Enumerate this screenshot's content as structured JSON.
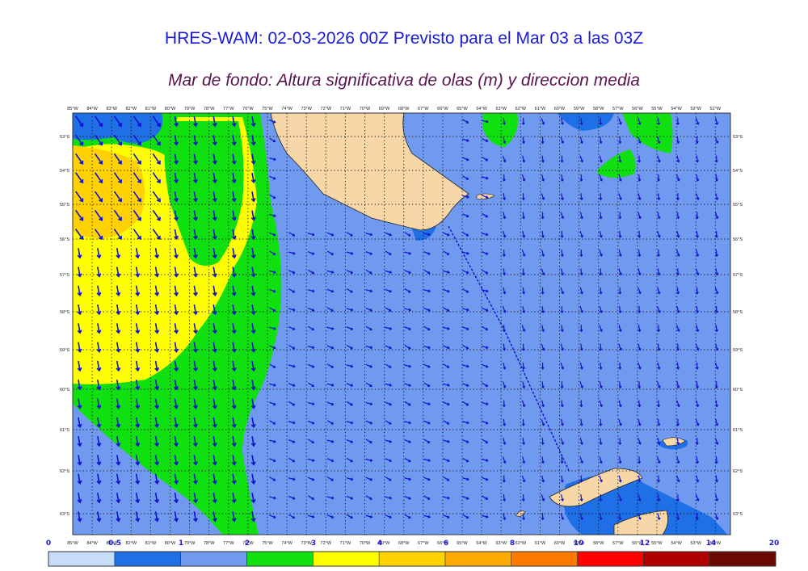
{
  "title": "HRES-WAM: 02-03-2026 00Z Previsto para el Mar 03 a las 03Z",
  "subtitle": "Mar de fondo: Altura significativa de olas (m) y direccion media",
  "map": {
    "lon_labels": [
      "85°W",
      "84°W",
      "83°W",
      "82°W",
      "81°W",
      "80°W",
      "79°W",
      "78°W",
      "77°W",
      "76°W",
      "75°W",
      "74°W",
      "73°W",
      "72°W",
      "71°W",
      "70°W",
      "69°W",
      "68°W",
      "67°W",
      "66°W",
      "65°W",
      "64°W",
      "63°W",
      "62°W",
      "61°W",
      "60°W",
      "59°W",
      "58°W",
      "57°W",
      "56°W",
      "55°W",
      "54°W",
      "53°W",
      "52°W"
    ],
    "lat_labels": [
      "53°S",
      "54°S",
      "55°S",
      "56°S",
      "57°S",
      "58°S",
      "59°S",
      "60°S",
      "61°S",
      "62°S",
      "63°S"
    ]
  },
  "colorbar": {
    "labels": [
      "0",
      "0.5",
      "1",
      "2",
      "3",
      "4",
      "6",
      "8",
      "10",
      "12",
      "14",
      "20"
    ],
    "colors": [
      "#c6dcf7",
      "#1f6fe6",
      "#6f9af0",
      "#10e010",
      "#ffff00",
      "#ffd200",
      "#ffaa00",
      "#ff7a00",
      "#ff0000",
      "#b00000",
      "#6a0a00",
      "#3a3a3a"
    ]
  },
  "colors": {
    "title": "#1a1ad6",
    "subtitle": "#5a1450",
    "land": "#f7d6a8",
    "arrow": "#1010d0"
  }
}
